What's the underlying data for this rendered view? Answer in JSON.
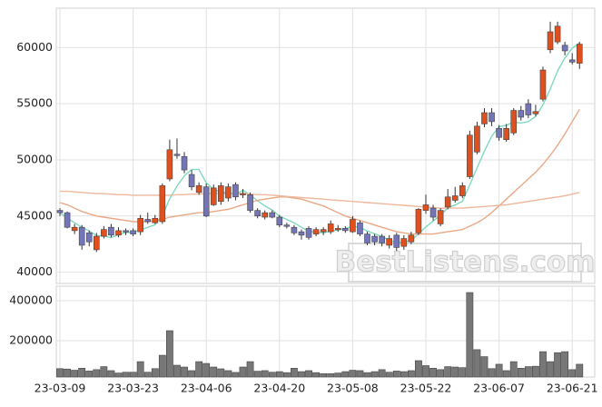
{
  "chart_data": [
    {
      "type": "candlestick",
      "categories": [
        "23-03-09",
        null,
        null,
        null,
        null,
        null,
        null,
        null,
        null,
        null,
        "23-03-23",
        null,
        null,
        null,
        null,
        null,
        null,
        null,
        null,
        null,
        "23-04-06",
        null,
        null,
        null,
        null,
        null,
        null,
        null,
        null,
        null,
        "23-04-20",
        null,
        null,
        null,
        null,
        null,
        null,
        null,
        null,
        null,
        "23-05-08",
        null,
        null,
        null,
        null,
        null,
        null,
        null,
        null,
        null,
        "23-05-22",
        null,
        null,
        null,
        null,
        null,
        null,
        null,
        null,
        null,
        "23-06-07",
        null,
        null,
        null,
        null,
        null,
        null,
        null,
        null,
        null,
        "23-06-21",
        null
      ],
      "open": [
        45500,
        45300,
        43700,
        44000,
        43500,
        42000,
        43200,
        44000,
        43300,
        43700,
        43700,
        43600,
        44700,
        44400,
        44500,
        48300,
        50500,
        50300,
        48700,
        47100,
        47600,
        46000,
        46300,
        46600,
        47800,
        46900,
        46900,
        45500,
        44900,
        45300,
        44900,
        44200,
        44000,
        43600,
        43900,
        43400,
        43600,
        43600,
        43800,
        43900,
        43600,
        44400,
        43400,
        43200,
        43200,
        42400,
        43300,
        42300,
        42700,
        43500,
        45500,
        45700,
        44300,
        45800,
        46400,
        46800,
        48500,
        50700,
        53200,
        54200,
        52800,
        51800,
        52400,
        54400,
        55000,
        54100,
        55400,
        59800,
        60500,
        60200,
        58900,
        58600
      ],
      "high": [
        45700,
        45400,
        44300,
        44200,
        43700,
        43500,
        44100,
        44300,
        44000,
        43900,
        43900,
        45100,
        45300,
        45100,
        47900,
        51800,
        51900,
        50700,
        49100,
        48000,
        47900,
        47800,
        48000,
        47900,
        48000,
        47400,
        47100,
        45700,
        45500,
        45500,
        45100,
        44400,
        44200,
        43800,
        44100,
        44000,
        44000,
        44600,
        44200,
        44100,
        45000,
        44600,
        43600,
        43400,
        43400,
        43300,
        43500,
        43300,
        43600,
        45700,
        46900,
        46000,
        45700,
        47400,
        47600,
        48000,
        52600,
        53400,
        54600,
        54600,
        53100,
        53200,
        54600,
        54800,
        55400,
        54900,
        58300,
        62300,
        62300,
        60500,
        59500,
        60500
      ],
      "low": [
        45000,
        43900,
        43400,
        42000,
        42300,
        41800,
        43000,
        43100,
        43100,
        43300,
        43200,
        43300,
        44300,
        44300,
        44300,
        48100,
        50100,
        48800,
        47300,
        46900,
        44900,
        45900,
        46000,
        46300,
        46400,
        46600,
        45300,
        44800,
        44700,
        44800,
        44000,
        43900,
        43300,
        42900,
        42900,
        43200,
        43300,
        43400,
        43600,
        43500,
        43500,
        43200,
        42400,
        42400,
        42300,
        42100,
        41900,
        42000,
        42500,
        43300,
        45200,
        44600,
        44100,
        45600,
        46200,
        46600,
        48300,
        50500,
        52900,
        53000,
        51700,
        51600,
        52200,
        53500,
        53700,
        53900,
        55200,
        59500,
        60300,
        59300,
        58500,
        58100
      ],
      "close": [
        45300,
        44000,
        44000,
        42400,
        42700,
        43200,
        43800,
        43300,
        43700,
        43600,
        43400,
        44800,
        44500,
        44800,
        47700,
        50900,
        50400,
        49100,
        47600,
        47700,
        45000,
        47500,
        47700,
        47600,
        46700,
        47000,
        45500,
        45000,
        45300,
        44900,
        44200,
        44100,
        43500,
        43300,
        43100,
        43800,
        43800,
        44300,
        43900,
        43700,
        44700,
        43400,
        42600,
        42700,
        42600,
        43000,
        42200,
        43000,
        43300,
        45600,
        46000,
        44900,
        45500,
        46700,
        46800,
        47700,
        52200,
        53000,
        54200,
        53400,
        52000,
        52800,
        54400,
        53800,
        54000,
        54300,
        58000,
        61400,
        61900,
        59700,
        58700,
        60300
      ],
      "up_color": "#e0501e",
      "down_color": "#7474b8",
      "series": [
        {
          "color": "#7fd8c0",
          "values": [
            45300,
            44800,
            44400,
            44000,
            43680,
            43260,
            43220,
            43080,
            43340,
            43520,
            43560,
            43760,
            44000,
            44220,
            45040,
            46540,
            47660,
            48580,
            49140,
            49140,
            47960,
            47380,
            47100,
            47100,
            46900,
            47300,
            46900,
            46360,
            45900,
            45540,
            44980,
            44700,
            44400,
            44000,
            43640,
            43560,
            43500,
            43660,
            43780,
            43900,
            44080,
            44000,
            43660,
            43420,
            43200,
            42860,
            42620,
            42700,
            42820,
            43420,
            44020,
            44560,
            45060,
            45740,
            45980,
            46320,
            47780,
            49280,
            50780,
            52100,
            52960,
            53080,
            53360,
            53280,
            53400,
            53860,
            54900,
            56300,
            57920,
            59060,
            59940,
            60400
          ]
        },
        {
          "color": "#eaa886",
          "values": [
            46200,
            46000,
            45700,
            45400,
            45200,
            45000,
            44900,
            44800,
            44700,
            44600,
            44500,
            44500,
            44500,
            44600,
            44700,
            44900,
            45000,
            45100,
            45200,
            45300,
            45300,
            45400,
            45500,
            45600,
            45800,
            46000,
            46200,
            46400,
            46500,
            46600,
            46700,
            46700,
            46600,
            46500,
            46300,
            46100,
            45900,
            45600,
            45300,
            45000,
            44800,
            44600,
            44400,
            44200,
            44000,
            43800,
            43600,
            43500,
            43400,
            43400,
            43400,
            43400,
            43500,
            43600,
            43700,
            43800,
            44100,
            44400,
            44800,
            45300,
            45900,
            46500,
            47100,
            47700,
            48300,
            48900,
            49600,
            50400,
            51300,
            52300,
            53400,
            54500
          ]
        },
        {
          "color": "#efb89e",
          "values": [
            47200,
            47200,
            47150,
            47100,
            47050,
            47000,
            47000,
            46950,
            46900,
            46900,
            46850,
            46850,
            46850,
            46850,
            46850,
            46850,
            46900,
            46900,
            46950,
            46950,
            47000,
            47000,
            47000,
            47000,
            47000,
            47000,
            46950,
            46900,
            46900,
            46850,
            46800,
            46750,
            46700,
            46650,
            46600,
            46550,
            46500,
            46450,
            46400,
            46350,
            46300,
            46250,
            46200,
            46150,
            46100,
            46050,
            46000,
            45950,
            45900,
            45850,
            45800,
            45750,
            45700,
            45700,
            45700,
            45700,
            45750,
            45800,
            45850,
            45900,
            45950,
            46000,
            46100,
            46200,
            46300,
            46400,
            46500,
            46600,
            46700,
            46800,
            46950,
            47100
          ]
        }
      ],
      "ylim": [
        39000,
        63500
      ],
      "yticks": [
        40000,
        45000,
        50000,
        55000,
        60000
      ],
      "grid": true,
      "watermark": "BestListens.com"
    },
    {
      "type": "bar",
      "color": "#777777",
      "values": [
        60000,
        58000,
        52000,
        62000,
        48000,
        55000,
        70000,
        50000,
        38000,
        42000,
        42000,
        95000,
        42000,
        60000,
        127000,
        250000,
        77000,
        68000,
        50000,
        95000,
        86000,
        68000,
        59000,
        50000,
        41000,
        68000,
        95000,
        47000,
        50000,
        42000,
        45000,
        40000,
        62000,
        45000,
        50000,
        40000,
        35000,
        35000,
        38000,
        45000,
        52000,
        50000,
        40000,
        45000,
        55000,
        42000,
        48000,
        45000,
        50000,
        100000,
        75000,
        62000,
        55000,
        70000,
        68000,
        65000,
        441000,
        155000,
        120000,
        60000,
        82000,
        50000,
        95000,
        62000,
        70000,
        72000,
        145000,
        95000,
        140000,
        145000,
        55000,
        82000
      ],
      "ylim": [
        18000,
        473000
      ],
      "yticks": [
        200000,
        400000
      ],
      "grid": true
    }
  ]
}
